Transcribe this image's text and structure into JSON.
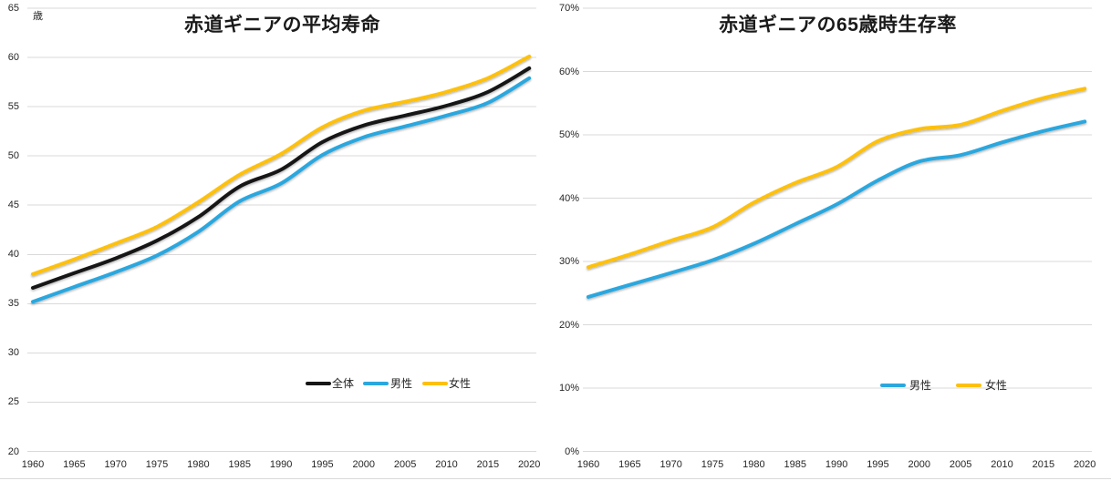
{
  "page": {
    "background": "#ffffff"
  },
  "chart_data": [
    {
      "type": "line",
      "title": "赤道ギニアの平均寿命",
      "unit_label": "歳",
      "xlabel": "",
      "ylabel": "歳",
      "x": [
        1960,
        1965,
        1970,
        1975,
        1980,
        1985,
        1990,
        1995,
        2000,
        2005,
        2010,
        2015,
        2020
      ],
      "ylim": [
        20,
        65
      ],
      "ytick_step": 5,
      "ytick_suffix": "",
      "grid": true,
      "grid_color": "#d9d9d9",
      "legend_position": "inside-bottom-center-right",
      "series": [
        {
          "key": "total",
          "name": "全体",
          "color": "#161616",
          "values": [
            36.6,
            38.1,
            39.6,
            41.4,
            43.8,
            46.9,
            48.6,
            51.4,
            53.1,
            54.1,
            55.1,
            56.5,
            58.9
          ]
        },
        {
          "key": "male",
          "name": "男性",
          "color": "#2ba7de",
          "values": [
            35.2,
            36.7,
            38.2,
            39.9,
            42.3,
            45.4,
            47.2,
            50.1,
            51.9,
            53.0,
            54.1,
            55.4,
            57.9
          ]
        },
        {
          "key": "female",
          "name": "女性",
          "color": "#fdc011",
          "values": [
            38.0,
            39.5,
            41.1,
            42.8,
            45.3,
            48.1,
            50.2,
            52.9,
            54.6,
            55.5,
            56.5,
            57.9,
            60.1
          ]
        }
      ]
    },
    {
      "type": "line",
      "title": "赤道ギニアの65歳時生存率",
      "unit_label": "",
      "xlabel": "",
      "ylabel": "%",
      "x": [
        1960,
        1965,
        1970,
        1975,
        1980,
        1985,
        1990,
        1995,
        2000,
        2005,
        2010,
        2015,
        2020
      ],
      "ylim": [
        0,
        70
      ],
      "ytick_step": 10,
      "ytick_suffix": "%",
      "grid": true,
      "grid_color": "#d9d9d9",
      "legend_position": "inside-bottom-center-right",
      "series": [
        {
          "key": "male",
          "name": "男性",
          "color": "#2ba7de",
          "values": [
            24.4,
            26.3,
            28.2,
            30.2,
            32.8,
            35.9,
            39.0,
            42.8,
            45.8,
            46.8,
            48.8,
            50.6,
            52.1
          ]
        },
        {
          "key": "female",
          "name": "女性",
          "color": "#fdc011",
          "values": [
            29.1,
            31.1,
            33.3,
            35.4,
            39.3,
            42.4,
            44.9,
            49.0,
            50.9,
            51.6,
            53.8,
            55.8,
            57.3
          ]
        }
      ]
    }
  ]
}
